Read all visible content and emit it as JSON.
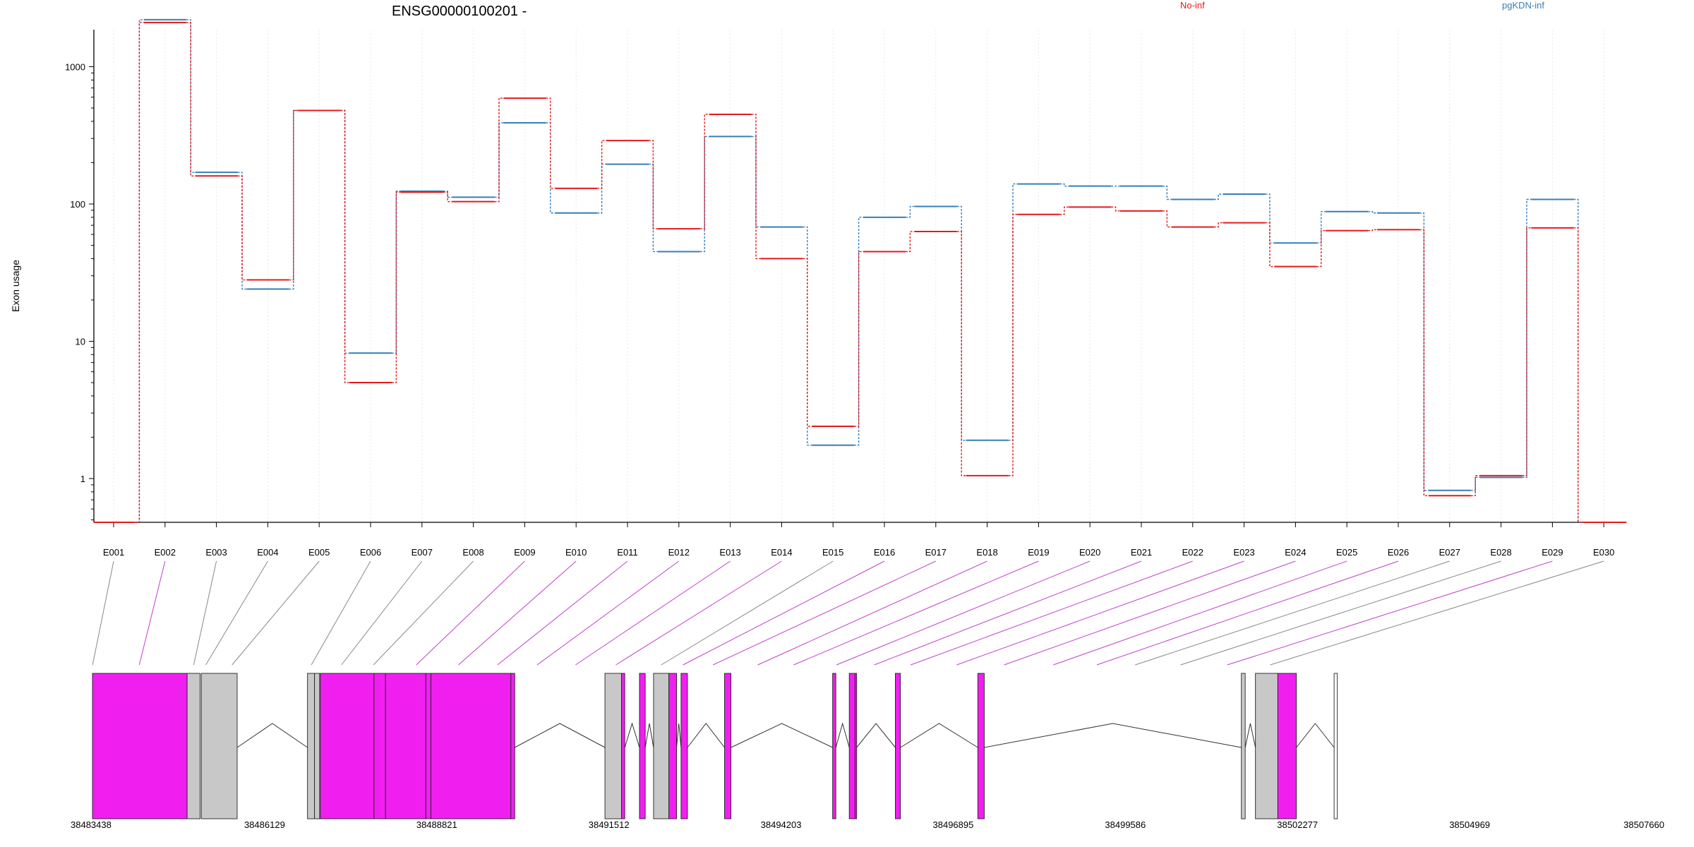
{
  "chart_data": {
    "type": "line",
    "title": "ENSG00000100201 -",
    "ylabel": "Exon usage",
    "yscale": "log",
    "ylim": [
      0.35,
      3200
    ],
    "yticks": [
      1,
      10,
      100,
      1000
    ],
    "categories": [
      "E001",
      "E002",
      "E003",
      "E004",
      "E005",
      "E006",
      "E007",
      "E008",
      "E009",
      "E010",
      "E011",
      "E012",
      "E013",
      "E014",
      "E015",
      "E016",
      "E017",
      "E018",
      "E019",
      "E020",
      "E021",
      "E022",
      "E023",
      "E024",
      "E025",
      "E026",
      "E027",
      "E028",
      "E029",
      "E030"
    ],
    "series": [
      {
        "name": "No-inf",
        "color": "#e41a1c",
        "values": [
          0.48,
          2100,
          160,
          28,
          480,
          5,
          122,
          104,
          590,
          130,
          290,
          66,
          450,
          40,
          2.4,
          45,
          63,
          1.05,
          84,
          95,
          89,
          68,
          73,
          35,
          64,
          65,
          0.75,
          1.05,
          67,
          0.48
        ]
      },
      {
        "name": "pgKDN-inf",
        "color": "#377eb8",
        "values": [
          0.48,
          2200,
          170,
          24,
          480,
          8.2,
          124,
          112,
          390,
          86,
          195,
          45,
          310,
          68,
          1.75,
          80,
          96,
          1.9,
          140,
          135,
          135,
          108,
          118,
          52,
          88,
          86,
          0.82,
          1.02,
          108,
          0.48
        ]
      }
    ],
    "genomic_axis": {
      "ticks": [
        "38483438",
        "38486129",
        "38488821",
        "38491512",
        "38494203",
        "38496895",
        "38499586",
        "38502277",
        "38504969",
        "38507660"
      ]
    },
    "gene_model": {
      "exon_colors": {
        "significant": "#f01ff0",
        "normal": "#c8c8c8",
        "empty": "#ffffff"
      },
      "exons": [
        {
          "start": 38483438,
          "end": 38484918,
          "status": "significant"
        },
        {
          "start": 38484918,
          "end": 38485120,
          "status": "normal"
        },
        {
          "start": 38485140,
          "end": 38485700,
          "status": "normal"
        },
        {
          "start": 38486800,
          "end": 38486910,
          "status": "normal"
        },
        {
          "start": 38486910,
          "end": 38486990,
          "status": "normal"
        },
        {
          "start": 38487000,
          "end": 38487840,
          "status": "significant"
        },
        {
          "start": 38487840,
          "end": 38488020,
          "status": "significant"
        },
        {
          "start": 38488020,
          "end": 38488650,
          "status": "significant"
        },
        {
          "start": 38488650,
          "end": 38488730,
          "status": "significant"
        },
        {
          "start": 38488730,
          "end": 38489980,
          "status": "significant"
        },
        {
          "start": 38489980,
          "end": 38490040,
          "status": "significant"
        },
        {
          "start": 38491450,
          "end": 38491710,
          "status": "normal"
        },
        {
          "start": 38491710,
          "end": 38491760,
          "status": "significant"
        },
        {
          "start": 38491990,
          "end": 38492080,
          "status": "significant"
        },
        {
          "start": 38492210,
          "end": 38492450,
          "status": "normal"
        },
        {
          "start": 38492450,
          "end": 38492570,
          "status": "significant"
        },
        {
          "start": 38492640,
          "end": 38492740,
          "status": "significant"
        },
        {
          "start": 38493320,
          "end": 38493420,
          "status": "significant"
        },
        {
          "start": 38495010,
          "end": 38495060,
          "status": "significant"
        },
        {
          "start": 38495270,
          "end": 38495360,
          "status": "significant"
        },
        {
          "start": 38495360,
          "end": 38495385,
          "status": "significant"
        },
        {
          "start": 38495990,
          "end": 38496070,
          "status": "significant"
        },
        {
          "start": 38497280,
          "end": 38497380,
          "status": "significant"
        },
        {
          "start": 38501400,
          "end": 38501460,
          "status": "normal"
        },
        {
          "start": 38501620,
          "end": 38501970,
          "status": "normal"
        },
        {
          "start": 38501970,
          "end": 38502260,
          "status": "significant"
        },
        {
          "start": 38502850,
          "end": 38502900,
          "status": "empty"
        }
      ],
      "exon_links": [
        [
          38483440,
          38483440,
          false
        ],
        [
          38483960,
          38484170,
          true
        ],
        [
          38485060,
          38485020,
          false
        ],
        [
          38485170,
          38485210,
          false
        ],
        [
          38485340,
          38485620,
          false
        ],
        [
          38486890,
          38486860,
          false
        ],
        [
          38486990,
          38487330,
          false
        ],
        [
          38487100,
          38487830,
          false
        ],
        [
          38487600,
          38488500,
          true
        ],
        [
          38488120,
          38489160,
          true
        ],
        [
          38488500,
          38489770,
          true
        ],
        [
          38488950,
          38490390,
          true
        ],
        [
          38489700,
          38490990,
          true
        ],
        [
          38490350,
          38491620,
          true
        ],
        [
          38491560,
          38492330,
          false
        ],
        [
          38491700,
          38492670,
          true
        ],
        [
          38491950,
          38493140,
          true
        ],
        [
          38492500,
          38493840,
          true
        ],
        [
          38492650,
          38494400,
          true
        ],
        [
          38492700,
          38495070,
          true
        ],
        [
          38493300,
          38495660,
          true
        ],
        [
          38495010,
          38496230,
          true
        ],
        [
          38495320,
          38496950,
          true
        ],
        [
          38495370,
          38497690,
          true
        ],
        [
          38496060,
          38498460,
          true
        ],
        [
          38497350,
          38499140,
          true
        ],
        [
          38501420,
          38499740,
          false
        ],
        [
          38501800,
          38500450,
          false
        ],
        [
          38502050,
          38501180,
          true
        ],
        [
          38502890,
          38501850,
          false
        ]
      ]
    }
  },
  "legend": [
    {
      "label": "No-inf",
      "color": "#e41a1c"
    },
    {
      "label": "pgKDN-inf",
      "color": "#377eb8"
    }
  ]
}
